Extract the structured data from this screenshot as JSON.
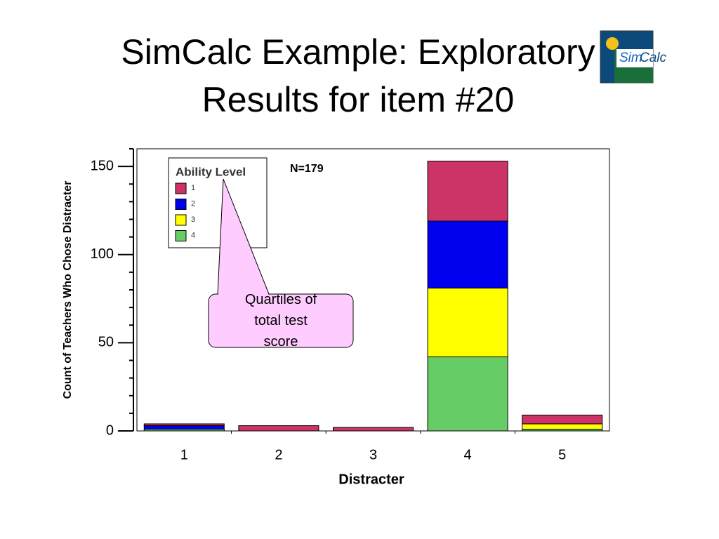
{
  "chart_data": {
    "type": "stacked_bar",
    "title": "SimCalc Example: Exploratory Results for item #20",
    "logo_left": "Sim",
    "logo_right": "Calc",
    "x_label": "Distracter",
    "y_label": "Count of Teachers Who Chose Distracter",
    "annotation_n": "N=179",
    "callout": "Quartiles of total test score",
    "legend_title": "Ability Level",
    "categories": [
      "1",
      "2",
      "3",
      "4",
      "5"
    ],
    "series": [
      {
        "name": "1",
        "color": "#cc3366",
        "values": [
          1,
          3,
          2,
          34,
          5
        ]
      },
      {
        "name": "2",
        "color": "#0000ee",
        "values": [
          2,
          0,
          0,
          38,
          0
        ]
      },
      {
        "name": "3",
        "color": "#ffff00",
        "values": [
          0,
          0,
          0,
          39,
          3
        ]
      },
      {
        "name": "4",
        "color": "#66cc66",
        "values": [
          1,
          0,
          0,
          42,
          1
        ]
      }
    ],
    "ylim": [
      0,
      160
    ],
    "yticks": [
      0,
      50,
      100,
      150
    ],
    "yticks_minor": [
      10,
      20,
      30,
      40,
      60,
      70,
      80,
      90,
      110,
      120,
      130,
      140,
      160
    ],
    "grid": false
  }
}
